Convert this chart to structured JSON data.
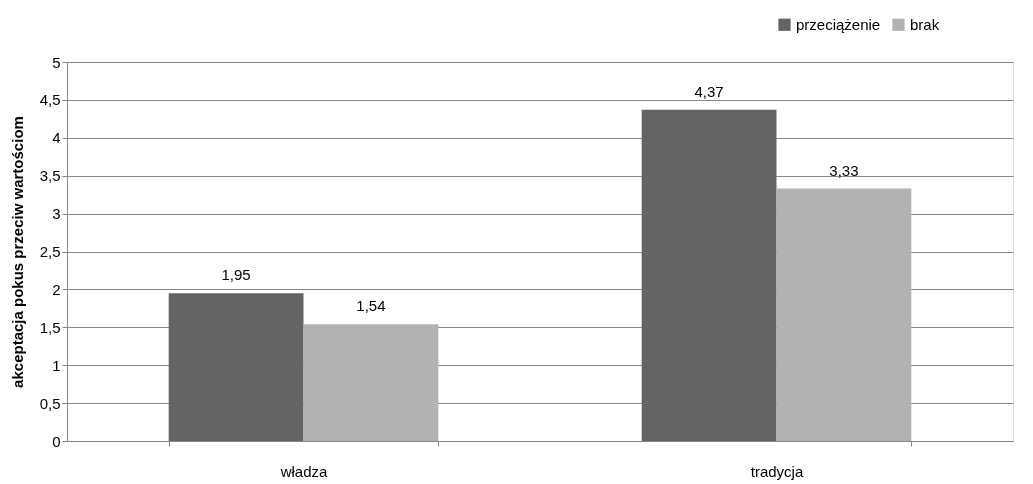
{
  "chart_data": {
    "type": "bar",
    "ylabel": "akceptacja  pokus przeciw wartościom",
    "categories": [
      "władza",
      "tradycja"
    ],
    "series": [
      {
        "name": "przeciążenie",
        "color": "#646464",
        "values": [
          1.95,
          4.37
        ],
        "value_labels": [
          "1,95",
          "4,37"
        ]
      },
      {
        "name": "brak",
        "color": "#b2b2b2",
        "values": [
          1.54,
          3.33
        ],
        "value_labels": [
          "1,54",
          "3,33"
        ]
      }
    ],
    "ylim": [
      0,
      5
    ],
    "yticks": [
      0,
      {
        "value": 0.5,
        "label": "0,5"
      },
      1,
      {
        "value": 1.5,
        "label": "1,5"
      },
      2,
      {
        "value": 2.5,
        "label": "2,5"
      },
      3,
      {
        "value": 3.5,
        "label": "3,5"
      },
      4,
      {
        "value": 4.5,
        "label": "4,5"
      },
      5
    ],
    "grid": "y",
    "legend": "top right"
  }
}
